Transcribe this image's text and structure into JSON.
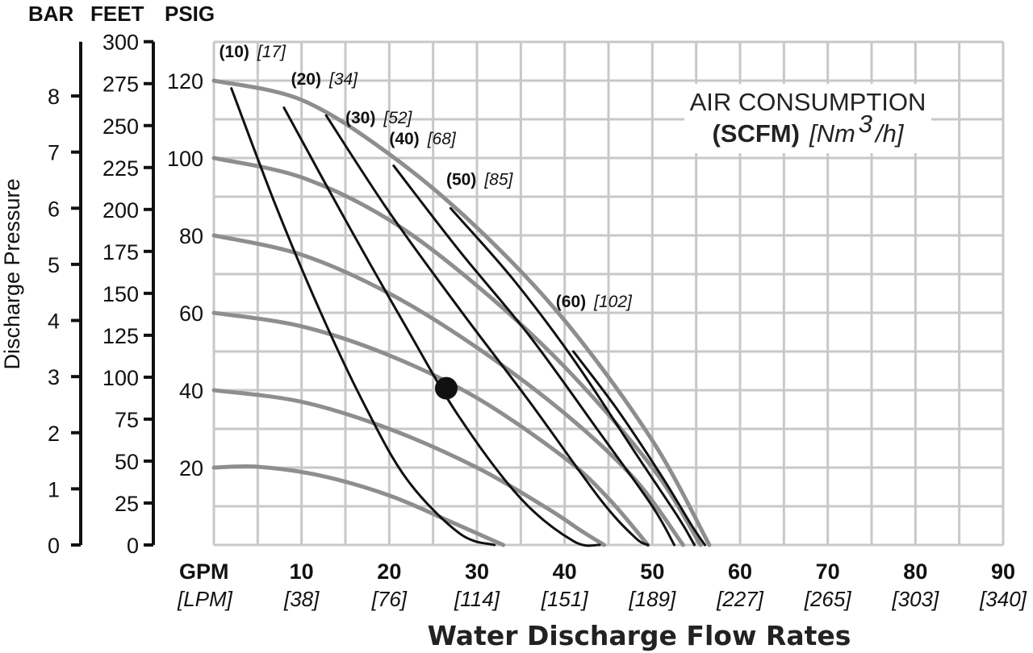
{
  "chart_data": {
    "type": "line",
    "axis_headers": {
      "bar": "BAR",
      "feet": "FEET",
      "psig": "PSIG"
    },
    "ylabel": "Discharge Pressure",
    "xlabel": "Water Discharge Flow Rates",
    "legend": {
      "title": "AIR CONSUMPTION",
      "unit_bold": "(SCFM)",
      "unit_italic": "[Nm",
      "unit_sup": "3",
      "unit_end": "/h]"
    },
    "x_unit": {
      "gpm": "GPM",
      "lpm": "[LPM]"
    },
    "xlim": [
      0,
      90
    ],
    "ylim_psig": [
      0,
      130
    ],
    "x_ticks": [
      {
        "gpm": "10",
        "lpm": "[38]",
        "value": 10
      },
      {
        "gpm": "20",
        "lpm": "[76]",
        "value": 20
      },
      {
        "gpm": "30",
        "lpm": "[114]",
        "value": 30
      },
      {
        "gpm": "40",
        "lpm": "[151]",
        "value": 40
      },
      {
        "gpm": "50",
        "lpm": "[189]",
        "value": 50
      },
      {
        "gpm": "60",
        "lpm": "[227]",
        "value": 60
      },
      {
        "gpm": "70",
        "lpm": "[265]",
        "value": 70
      },
      {
        "gpm": "80",
        "lpm": "[303]",
        "value": 80
      },
      {
        "gpm": "90",
        "lpm": "[340]",
        "value": 90
      }
    ],
    "psig_ticks": [
      {
        "label": "20",
        "value": 20
      },
      {
        "label": "40",
        "value": 40
      },
      {
        "label": "60",
        "value": 60
      },
      {
        "label": "80",
        "value": 80
      },
      {
        "label": "100",
        "value": 100
      },
      {
        "label": "120",
        "value": 120
      }
    ],
    "feet_ticks": [
      {
        "label": "0",
        "value": 0
      },
      {
        "label": "25",
        "value": 25
      },
      {
        "label": "50",
        "value": 50
      },
      {
        "label": "75",
        "value": 75
      },
      {
        "label": "100",
        "value": 100
      },
      {
        "label": "125",
        "value": 125
      },
      {
        "label": "150",
        "value": 150
      },
      {
        "label": "175",
        "value": 175
      },
      {
        "label": "200",
        "value": 200
      },
      {
        "label": "225",
        "value": 225
      },
      {
        "label": "250",
        "value": 250
      },
      {
        "label": "275",
        "value": 275
      },
      {
        "label": "300",
        "value": 300
      }
    ],
    "bar_ticks": [
      {
        "label": "0",
        "value": 0
      },
      {
        "label": "1",
        "value": 1
      },
      {
        "label": "2",
        "value": 2
      },
      {
        "label": "3",
        "value": 3
      },
      {
        "label": "4",
        "value": 4
      },
      {
        "label": "5",
        "value": 5
      },
      {
        "label": "6",
        "value": 6
      },
      {
        "label": "7",
        "value": 7
      },
      {
        "label": "8",
        "value": 8
      }
    ],
    "pressure_curves": [
      {
        "psig": 20,
        "points": [
          [
            0,
            20
          ],
          [
            5,
            20.2
          ],
          [
            12,
            18
          ],
          [
            20,
            12.8
          ],
          [
            27,
            6
          ],
          [
            32,
            1
          ],
          [
            33,
            0
          ]
        ]
      },
      {
        "psig": 40,
        "points": [
          [
            0,
            40
          ],
          [
            10,
            37
          ],
          [
            20,
            30
          ],
          [
            30,
            20
          ],
          [
            38,
            9.5
          ],
          [
            42,
            3.5
          ],
          [
            44.5,
            0
          ]
        ]
      },
      {
        "psig": 60,
        "points": [
          [
            0,
            60
          ],
          [
            10,
            56.5
          ],
          [
            20,
            49
          ],
          [
            30,
            38
          ],
          [
            40,
            22.5
          ],
          [
            45,
            12
          ],
          [
            49.5,
            0
          ]
        ]
      },
      {
        "psig": 80,
        "points": [
          [
            0,
            80
          ],
          [
            10,
            75
          ],
          [
            20,
            65
          ],
          [
            30,
            51
          ],
          [
            40,
            34
          ],
          [
            48,
            17
          ],
          [
            53.5,
            0
          ]
        ]
      },
      {
        "psig": 100,
        "points": [
          [
            0,
            100
          ],
          [
            10,
            95
          ],
          [
            20,
            84
          ],
          [
            30,
            67
          ],
          [
            40,
            46
          ],
          [
            50,
            20
          ],
          [
            55.5,
            0
          ]
        ]
      },
      {
        "psig": 120,
        "points": [
          [
            0,
            120
          ],
          [
            10,
            115
          ],
          [
            20,
            101
          ],
          [
            30,
            82
          ],
          [
            40,
            58
          ],
          [
            50,
            27
          ],
          [
            56.5,
            0
          ]
        ]
      }
    ],
    "air_curves": [
      {
        "scfm": "(10)",
        "nm3h": "[17]",
        "label_at": [
          0.6,
          126
        ],
        "points": [
          [
            2,
            118
          ],
          [
            7,
            88
          ],
          [
            12,
            61
          ],
          [
            17,
            37
          ],
          [
            22,
            17
          ],
          [
            28,
            3
          ],
          [
            32,
            0
          ]
        ]
      },
      {
        "scfm": "(20)",
        "nm3h": "[34]",
        "label_at": [
          8.8,
          119
        ],
        "points": [
          [
            8,
            113
          ],
          [
            15,
            84
          ],
          [
            22,
            56
          ],
          [
            28,
            33
          ],
          [
            35,
            12
          ],
          [
            41,
            1
          ],
          [
            44,
            0
          ]
        ]
      },
      {
        "scfm": "(30)",
        "nm3h": "[52]",
        "label_at": [
          15,
          109
        ],
        "points": [
          [
            12.8,
            111
          ],
          [
            20,
            86
          ],
          [
            28,
            61
          ],
          [
            36,
            37
          ],
          [
            44,
            12
          ],
          [
            48,
            2
          ],
          [
            49.5,
            0
          ]
        ]
      },
      {
        "scfm": "(40)",
        "nm3h": "[68]",
        "label_at": [
          20,
          103.5
        ],
        "points": [
          [
            20.5,
            98
          ],
          [
            28,
            76
          ],
          [
            36,
            54
          ],
          [
            44,
            29
          ],
          [
            50,
            10
          ],
          [
            52.5,
            0
          ]
        ]
      },
      {
        "scfm": "(50)",
        "nm3h": "[85]",
        "label_at": [
          26.5,
          93
        ],
        "points": [
          [
            27,
            87
          ],
          [
            34,
            69
          ],
          [
            41,
            48
          ],
          [
            48,
            24
          ],
          [
            53,
            7
          ],
          [
            54.8,
            0
          ]
        ]
      },
      {
        "scfm": "(60)",
        "nm3h": "[102]",
        "label_at": [
          39,
          61.5
        ],
        "points": [
          [
            41,
            50
          ],
          [
            46,
            35
          ],
          [
            51,
            18
          ],
          [
            54.5,
            5
          ],
          [
            56,
            0
          ]
        ]
      }
    ],
    "operating_point": {
      "gpm": 26.5,
      "psig": 40.5
    }
  }
}
